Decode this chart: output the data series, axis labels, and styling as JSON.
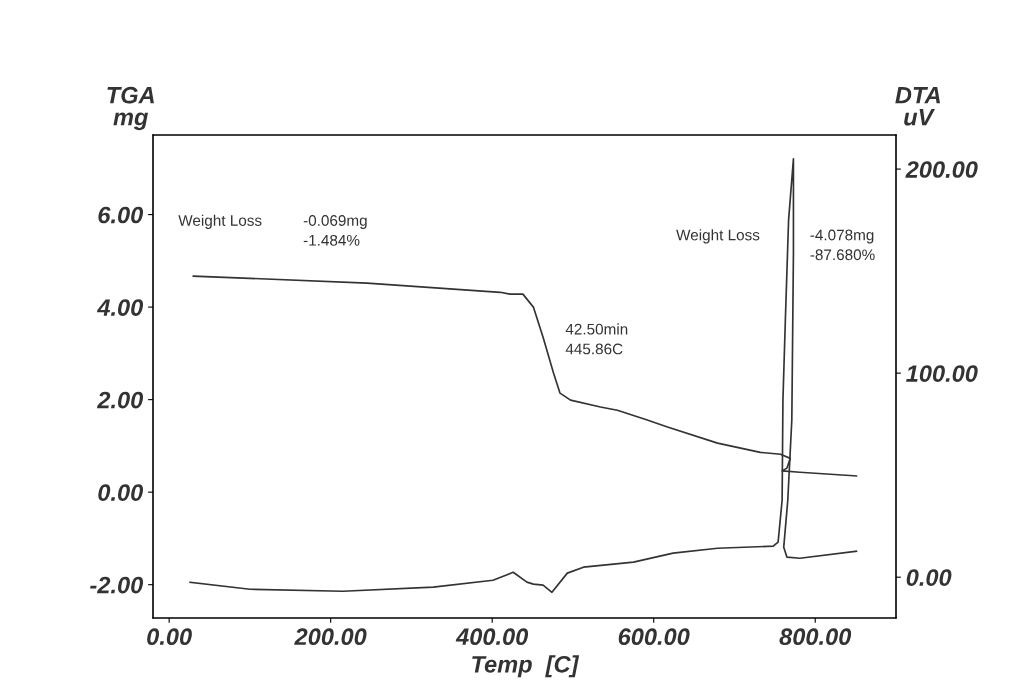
{
  "chart_data": {
    "type": "line",
    "xlabel": "Temp  [C]",
    "ylabel": "TGA\nmg",
    "y2label": "DTA\nuV",
    "xlim": [
      -20,
      900
    ],
    "xticks": [
      {
        "value": 0,
        "label": "0.00"
      },
      {
        "value": 200,
        "label": "200.00"
      },
      {
        "value": 400,
        "label": "400.00"
      },
      {
        "value": 600,
        "label": "600.00"
      },
      {
        "value": 800,
        "label": "800.00"
      }
    ],
    "ylim": [
      -2.72,
      7.72
    ],
    "yticks": [
      {
        "value": -2,
        "label": "-2.00"
      },
      {
        "value": 0,
        "label": "0.00"
      },
      {
        "value": 2,
        "label": "2.00"
      },
      {
        "value": 4,
        "label": "4.00"
      },
      {
        "value": 6,
        "label": "6.00"
      }
    ],
    "y2lim": [
      -20,
      216.7
    ],
    "y2ticks": [
      {
        "value": 0,
        "label": "0.00"
      },
      {
        "value": 100,
        "label": "100.00"
      },
      {
        "value": 200,
        "label": "200.00"
      }
    ],
    "grid": false,
    "legend": false,
    "marker": "none",
    "line_style": "solid",
    "series": [
      {
        "color": "#333333",
        "x": [
          30,
          245,
          410,
          422,
          438,
          451,
          463,
          476,
          484,
          497,
          534,
          555,
          592,
          617,
          679,
          732,
          757,
          769,
          765,
          759,
          781,
          851
        ],
        "values": [
          4.67,
          4.52,
          4.32,
          4.28,
          4.28,
          4.0,
          3.35,
          2.57,
          2.14,
          1.99,
          1.84,
          1.77,
          1.56,
          1.41,
          1.06,
          0.86,
          0.82,
          0.73,
          0.52,
          0.46,
          0.43,
          0.35
        ]
      },
      {
        "color": "#333333",
        "axis": "y2",
        "x": [
          26,
          100,
          215,
          327,
          401,
          426,
          443,
          451,
          463,
          474,
          493,
          513,
          575,
          624,
          679,
          748,
          754,
          759,
          760,
          763,
          767,
          773,
          773,
          771,
          766,
          761,
          765,
          781,
          851
        ],
        "values": [
          -2.5,
          -5.9,
          -6.9,
          -4.9,
          -1.5,
          2.4,
          -2.4,
          -3.4,
          -3.9,
          -7.4,
          2.0,
          4.9,
          7.4,
          11.8,
          14.2,
          15.2,
          17.2,
          37.7,
          86.8,
          126,
          175,
          205,
          159,
          77,
          37.7,
          14.7,
          9.8,
          9.3,
          12.7
        ]
      }
    ],
    "annotations": [
      "Weight Loss",
      "-0.069mg\n-1.484%",
      "42.50min\n445.86C",
      "Weight Loss",
      "-4.078mg\n-87.680%"
    ]
  }
}
